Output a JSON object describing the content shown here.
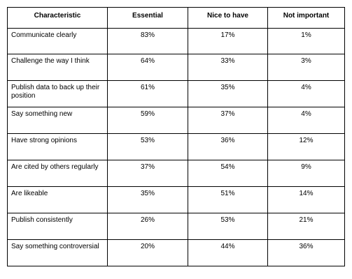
{
  "table": {
    "headers": [
      "Characteristic",
      "Essential",
      "Nice to have",
      "Not important"
    ],
    "rows": [
      {
        "characteristic": "Communicate clearly",
        "essential": "83%",
        "nice_to_have": "17%",
        "not_important": "1%"
      },
      {
        "characteristic": "Challenge the way I think",
        "essential": "64%",
        "nice_to_have": "33%",
        "not_important": "3%"
      },
      {
        "characteristic": "Publish data to back up their position",
        "essential": "61%",
        "nice_to_have": "35%",
        "not_important": "4%"
      },
      {
        "characteristic": "Say something new",
        "essential": "59%",
        "nice_to_have": "37%",
        "not_important": "4%"
      },
      {
        "characteristic": "Have strong opinions",
        "essential": "53%",
        "nice_to_have": "36%",
        "not_important": "12%"
      },
      {
        "characteristic": "Are cited by others regularly",
        "essential": "37%",
        "nice_to_have": "54%",
        "not_important": "9%"
      },
      {
        "characteristic": "Are likeable",
        "essential": "35%",
        "nice_to_have": "51%",
        "not_important": "14%"
      },
      {
        "characteristic": "Publish consistently",
        "essential": "26%",
        "nice_to_have": "53%",
        "not_important": "21%"
      },
      {
        "characteristic": "Say something controversial",
        "essential": "20%",
        "nice_to_have": "44%",
        "not_important": "36%"
      }
    ]
  }
}
